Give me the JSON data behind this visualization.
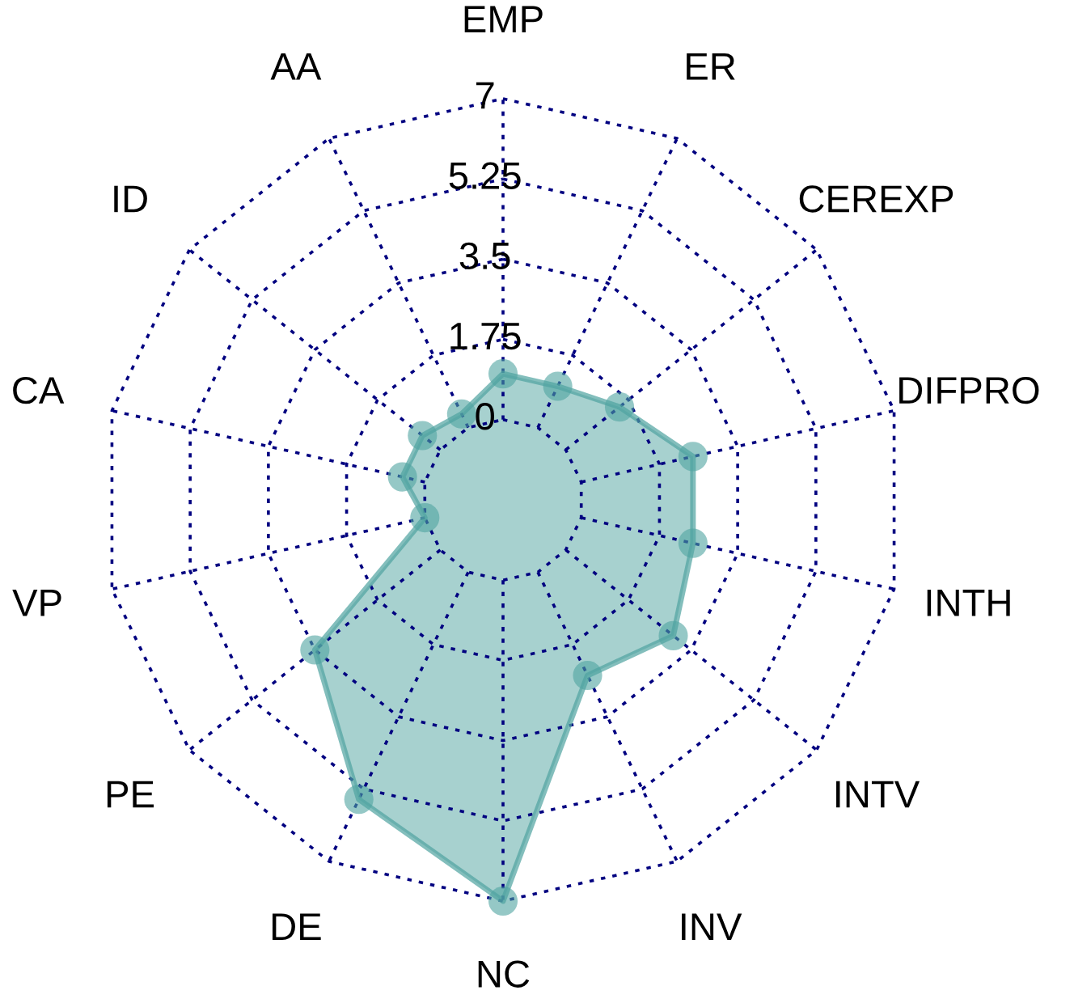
{
  "chart_data": {
    "type": "radar",
    "categories": [
      "EMP",
      "ER",
      "CEREXP",
      "DIFPRO",
      "INTH",
      "INTV",
      "INV",
      "NC",
      "DE",
      "PE",
      "VP",
      "CA",
      "ID",
      "AA"
    ],
    "series": [
      {
        "color": "#4fa3a0",
        "values": [
          1,
          1,
          1.5,
          2.5,
          2.5,
          3,
          2.5,
          7,
          5.5,
          3.5,
          0,
          0.5,
          0.5,
          0.33
        ]
      }
    ],
    "ylim": [
      -1.75,
      7
    ],
    "yticks": [
      0,
      1.75,
      3.5,
      5.25,
      7
    ],
    "grid": true,
    "marker": "circle",
    "line_style": "solid"
  }
}
